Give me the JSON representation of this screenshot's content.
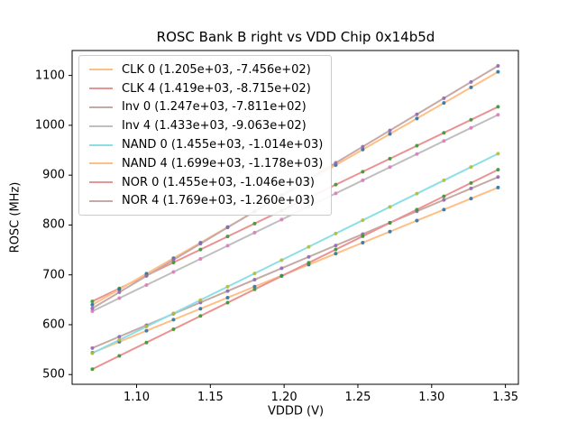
{
  "chart_data": {
    "type": "line",
    "title": "ROSC Bank B right vs VDD Chip 0x14b5d",
    "xlabel": "VDDD (V)",
    "ylabel": "ROSC (MHz)",
    "xlim": [
      1.0563,
      1.3588
    ],
    "ylim": [
      480.5,
      1150.0
    ],
    "grid": false,
    "legend_position": "upper left",
    "xticks": [
      {
        "value": 1.1,
        "label": "1.10"
      },
      {
        "value": 1.15,
        "label": "1.15"
      },
      {
        "value": 1.2,
        "label": "1.20"
      },
      {
        "value": 1.25,
        "label": "1.25"
      },
      {
        "value": 1.3,
        "label": "1.30"
      },
      {
        "value": 1.35,
        "label": "1.35"
      }
    ],
    "yticks": [
      {
        "value": 500,
        "label": "500"
      },
      {
        "value": 600,
        "label": "600"
      },
      {
        "value": 700,
        "label": "700"
      },
      {
        "value": 800,
        "label": "800"
      },
      {
        "value": 900,
        "label": "900"
      },
      {
        "value": 1000,
        "label": "1000"
      },
      {
        "value": 1100,
        "label": "1100"
      }
    ],
    "x": [
      1.07,
      1.0883,
      1.1067,
      1.125,
      1.1433,
      1.1617,
      1.18,
      1.1983,
      1.2167,
      1.235,
      1.2533,
      1.2717,
      1.29,
      1.3083,
      1.3267,
      1.345
    ],
    "series": [
      {
        "name": "CLK 0",
        "legend_label": "CLK 0 (1.205e+03, -7.456e+02)",
        "slope": 1205.0,
        "intercept": -745.6,
        "line_color": "#ffbf86",
        "marker_color": "#1f77b4"
      },
      {
        "name": "CLK 4",
        "legend_label": "CLK 4 (1.419e+03, -8.715e+02)",
        "slope": 1419.0,
        "intercept": -871.5,
        "line_color": "#ea9393",
        "marker_color": "#2ca02c"
      },
      {
        "name": "Inv 0",
        "legend_label": "Inv 0 (1.247e+03, -7.811e+02)",
        "slope": 1247.0,
        "intercept": -781.1,
        "line_color": "#c5aaa5",
        "marker_color": "#9467bd"
      },
      {
        "name": "Inv 4",
        "legend_label": "Inv 4 (1.433e+03, -9.063e+02)",
        "slope": 1433.0,
        "intercept": -906.3,
        "line_color": "#bfbfbf",
        "marker_color": "#e377c2"
      },
      {
        "name": "NAND 0",
        "legend_label": "NAND 0 (1.455e+03, -1.014e+03)",
        "slope": 1455.0,
        "intercept": -1014.0,
        "line_color": "#8bdfe7",
        "marker_color": "#bcbd22"
      },
      {
        "name": "NAND 4",
        "legend_label": "NAND 4 (1.699e+03, -1.178e+03)",
        "slope": 1699.0,
        "intercept": -1178.0,
        "line_color": "#ffbf86",
        "marker_color": "#1f77b4"
      },
      {
        "name": "NOR 0",
        "legend_label": "NOR 0 (1.455e+03, -1.046e+03)",
        "slope": 1455.0,
        "intercept": -1046.0,
        "line_color": "#ea9393",
        "marker_color": "#2ca02c"
      },
      {
        "name": "NOR 4",
        "legend_label": "NOR 4 (1.769e+03, -1.260e+03)",
        "slope": 1769.0,
        "intercept": -1260.0,
        "line_color": "#c5aaa5",
        "marker_color": "#9467bd"
      }
    ],
    "spine_color": "#000000"
  }
}
